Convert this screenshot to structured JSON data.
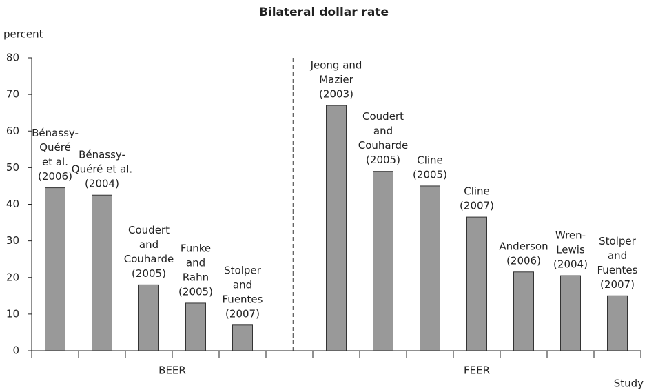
{
  "chart_data": {
    "type": "bar",
    "title": "Bilateral dollar rate",
    "y_label": "percent",
    "x_label": "Study",
    "ylim": [
      0,
      80
    ],
    "yticks": [
      0,
      10,
      20,
      30,
      40,
      50,
      60,
      70,
      80
    ],
    "color": "#999999",
    "groups": [
      {
        "name": "BEER",
        "categories": [
          [
            "Bénassy-",
            "Quéré",
            "et al.",
            "(2006)"
          ],
          [
            "Bénassy-",
            "Quéré et al.",
            "(2004)"
          ],
          [
            "Coudert",
            "and",
            "Couharde",
            "(2005)"
          ],
          [
            "Funke",
            "and",
            "Rahn",
            "(2005)"
          ],
          [
            "Stolper",
            "and",
            "Fuentes",
            "(2007)"
          ]
        ],
        "values": [
          44.5,
          42.5,
          18,
          13,
          7
        ]
      },
      {
        "name": "FEER",
        "categories": [
          [
            "Jeong and",
            "Mazier",
            "(2003)"
          ],
          [
            "Coudert",
            "and",
            "Couharde",
            "(2005)"
          ],
          [
            "Cline",
            "(2005)"
          ],
          [
            "Cline",
            "(2007)"
          ],
          [
            "Anderson",
            "(2006)"
          ],
          [
            "Wren-",
            "Lewis",
            "(2004)"
          ],
          [
            "Stolper",
            "and",
            "Fuentes",
            "(2007)"
          ]
        ],
        "values": [
          67,
          49,
          45,
          36.5,
          21.5,
          20.5,
          15
        ]
      }
    ]
  }
}
